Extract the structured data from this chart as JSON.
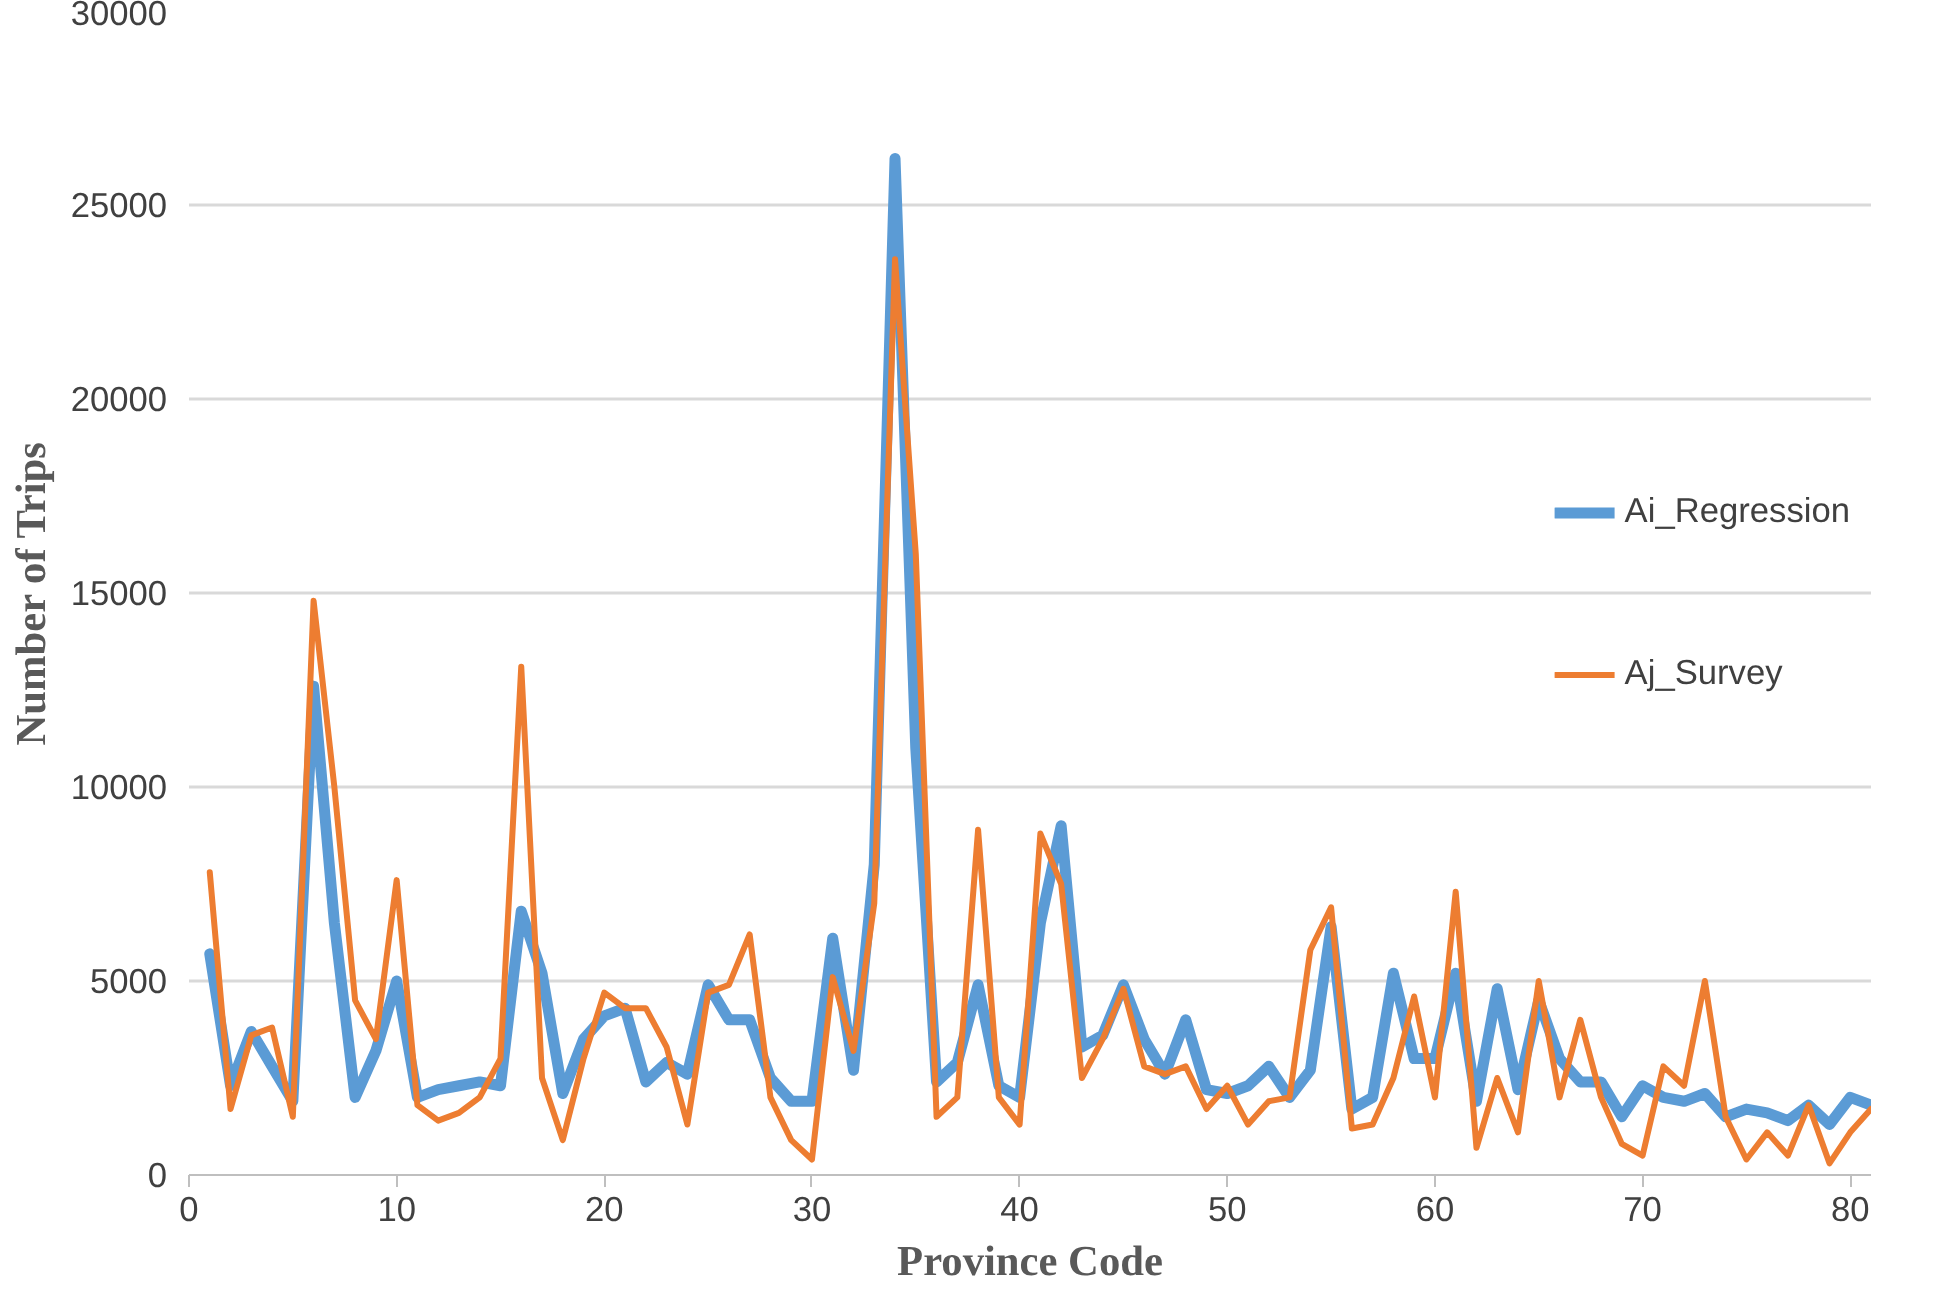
{
  "chart_data": {
    "type": "line",
    "xlabel": "Province Code",
    "ylabel": "Number of Trips",
    "x": [
      1,
      2,
      3,
      4,
      5,
      6,
      7,
      8,
      9,
      10,
      11,
      12,
      13,
      14,
      15,
      16,
      17,
      18,
      19,
      20,
      21,
      22,
      23,
      24,
      25,
      26,
      27,
      28,
      29,
      30,
      31,
      32,
      33,
      34,
      35,
      36,
      37,
      38,
      39,
      40,
      41,
      42,
      43,
      44,
      45,
      46,
      47,
      48,
      49,
      50,
      51,
      52,
      53,
      54,
      55,
      56,
      57,
      58,
      59,
      60,
      61,
      62,
      63,
      64,
      65,
      66,
      67,
      68,
      69,
      70,
      71,
      72,
      73,
      74,
      75,
      76,
      77,
      78,
      79,
      80,
      81
    ],
    "series": [
      {
        "name": "Ai_Regression",
        "color": "#5b9bd5",
        "values": [
          5700,
          2300,
          3700,
          2800,
          1900,
          12600,
          6500,
          2000,
          3200,
          5000,
          2000,
          2200,
          2300,
          2400,
          2300,
          6800,
          5200,
          2100,
          3500,
          4100,
          4300,
          2400,
          2900,
          2600,
          4900,
          4000,
          4000,
          2500,
          1900,
          1900,
          6100,
          2700,
          8000,
          26200,
          11000,
          2400,
          2900,
          4900,
          2300,
          2000,
          6500,
          9000,
          3300,
          3600,
          4900,
          3500,
          2600,
          4000,
          2200,
          2100,
          2300,
          2800,
          2000,
          2700,
          6400,
          1700,
          2000,
          5200,
          3000,
          3000,
          5200,
          1900,
          4800,
          2200,
          4500,
          3000,
          2400,
          2400,
          1500,
          2300,
          2000,
          1900,
          2100,
          1500,
          1700,
          1600,
          1400,
          1800,
          1300,
          2000,
          1800
        ]
      },
      {
        "name": "Aj_Survey",
        "color": "#ed7d31",
        "values": [
          7800,
          1700,
          3600,
          3800,
          1500,
          14800,
          10000,
          4500,
          3500,
          7600,
          1800,
          1400,
          1600,
          2000,
          3000,
          13100,
          2500,
          900,
          3000,
          4700,
          4300,
          4300,
          3300,
          1300,
          4700,
          4900,
          6200,
          2000,
          900,
          400,
          5100,
          3200,
          7000,
          23600,
          16000,
          1500,
          2000,
          8900,
          2000,
          1300,
          8800,
          7500,
          2500,
          3500,
          4800,
          2800,
          2600,
          2800,
          1700,
          2300,
          1300,
          1900,
          2000,
          5800,
          6900,
          1200,
          1300,
          2500,
          4600,
          2000,
          7300,
          700,
          2500,
          1100,
          5000,
          2000,
          4000,
          2000,
          800,
          500,
          2800,
          2300,
          5000,
          1500,
          400,
          1100,
          500,
          1800,
          300,
          1100,
          1700
        ]
      }
    ],
    "xlim": [
      0,
      81
    ],
    "xticks": [
      0,
      10,
      20,
      30,
      40,
      50,
      60,
      70,
      80
    ],
    "ylim": [
      0,
      30000
    ],
    "yticks": [
      0,
      5000,
      10000,
      15000,
      20000,
      25000,
      30000
    ],
    "grid": "y",
    "legend": "right",
    "marker": "none",
    "line_style": "solid"
  }
}
